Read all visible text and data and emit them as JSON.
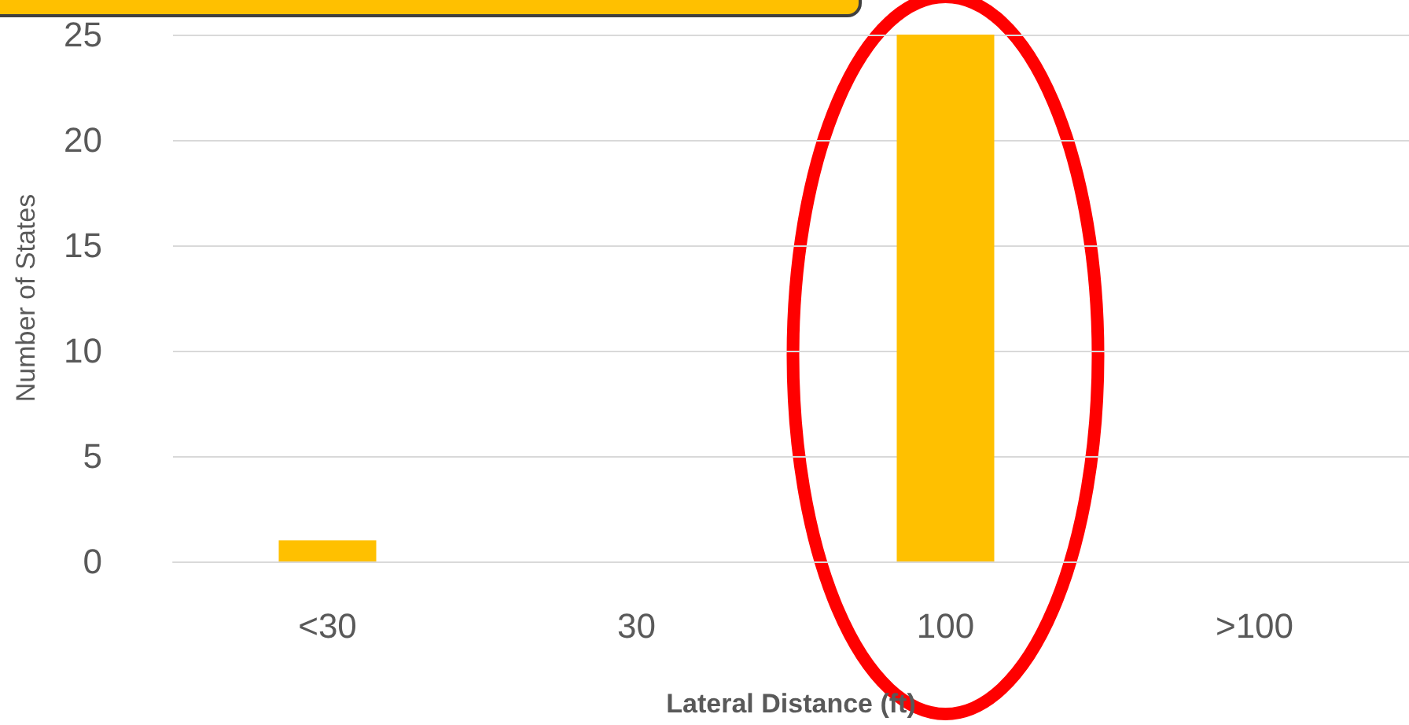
{
  "chart_data": {
    "type": "bar",
    "categories": [
      "<30",
      "30",
      "100",
      ">100"
    ],
    "values": [
      1,
      0,
      25,
      0
    ],
    "color": "#ffc000",
    "xlabel": "Lateral Distance (ft)",
    "ylabel": "Number of States",
    "ylim": [
      0,
      25
    ],
    "yticks": [
      0,
      5,
      10,
      15,
      20,
      25
    ],
    "grid": "y"
  }
}
